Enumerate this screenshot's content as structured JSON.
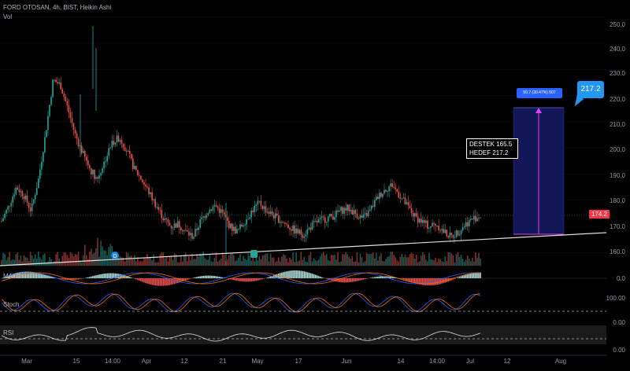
{
  "header": {
    "title": "FORD OTOSAN, 4h, BIST, Heikin Ashi",
    "volume_label": "Vol"
  },
  "price_axis": {
    "ticks": [
      "250.0",
      "240.0",
      "230.0",
      "220.0",
      "210.0",
      "200.0",
      "190.0",
      "180.0",
      "170.0",
      "160.0"
    ],
    "last_price": "174.2"
  },
  "time_axis": {
    "ticks": [
      "Mar",
      "15",
      "14:00",
      "Apr",
      "12",
      "21",
      "May",
      "17",
      "Jun",
      "14",
      "14:00",
      "Jul",
      "12",
      "Aug"
    ]
  },
  "indicators": {
    "macd": {
      "label": "MACD",
      "zero_value": "0.0"
    },
    "stoch": {
      "label": "Stoch",
      "levels": [
        "100.00",
        "0.00"
      ]
    },
    "rsi": {
      "label": "RSI",
      "levels": [
        "0.00"
      ]
    }
  },
  "annotations": {
    "note_line1": "DESTEK 165.5",
    "note_line2": "HEDEF 217.2",
    "measure_label": "50.7 (30.47%) 507",
    "target_callout": "217.2"
  },
  "colors": {
    "bull": "#26a69a",
    "bear": "#ef5350",
    "background": "#000000",
    "target_box": "#1b1f6b",
    "measure_arrow": "#e040fb",
    "callout": "#2196f3",
    "price_tag": "#f23645"
  },
  "chart_data": {
    "type": "candlestick",
    "series_close_path": [
      172,
      178,
      185,
      182,
      176,
      188,
      206,
      226,
      224,
      215,
      205,
      198,
      192,
      188,
      195,
      202,
      204,
      199,
      192,
      188,
      183,
      178,
      173,
      170,
      171,
      168,
      166,
      172,
      176,
      178,
      175,
      170,
      168,
      172,
      176,
      179,
      176,
      174,
      172,
      170,
      168,
      167,
      170,
      172,
      173,
      174,
      176,
      177,
      175,
      173,
      176,
      181,
      184,
      186,
      182,
      178,
      174,
      172,
      170,
      171,
      168,
      166,
      168,
      171,
      173,
      174
    ],
    "ylim": [
      155,
      255
    ],
    "support": 165.5,
    "target": 217.2
  }
}
